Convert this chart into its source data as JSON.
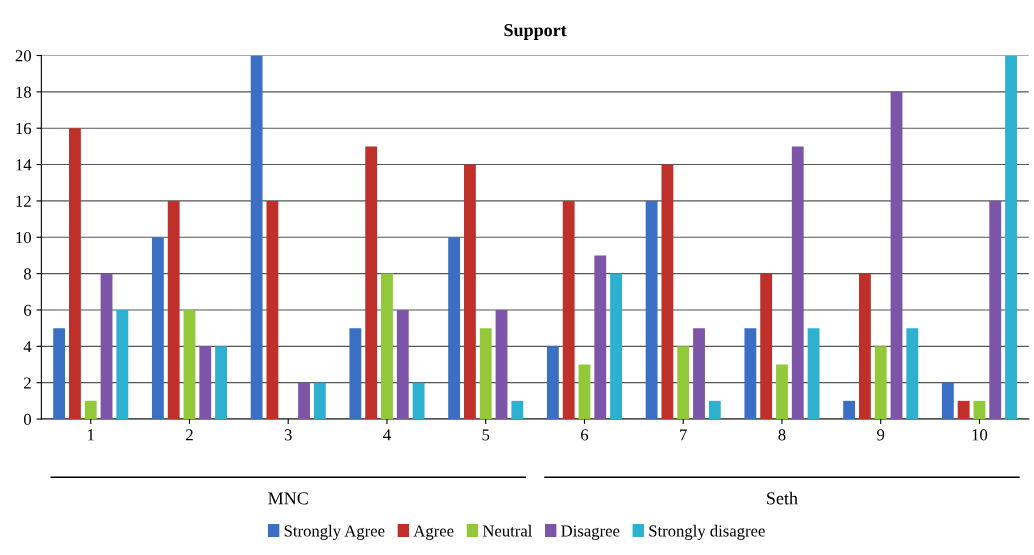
{
  "chart_data": {
    "type": "bar",
    "title": "Support",
    "categories": [
      "1",
      "2",
      "3",
      "4",
      "5",
      "6",
      "7",
      "8",
      "9",
      "10"
    ],
    "series": [
      {
        "name": "Strongly Agree",
        "color": "#3a6fc4",
        "values": [
          5,
          10,
          20,
          5,
          10,
          4,
          12,
          5,
          1,
          2
        ]
      },
      {
        "name": "Agree",
        "color": "#c0302a",
        "values": [
          16,
          12,
          12,
          15,
          14,
          12,
          14,
          8,
          8,
          1
        ]
      },
      {
        "name": "Neutral",
        "color": "#92c83a",
        "values": [
          1,
          6,
          0,
          8,
          5,
          3,
          4,
          3,
          4,
          1
        ]
      },
      {
        "name": "Disagree",
        "color": "#7d55a8",
        "values": [
          8,
          4,
          2,
          6,
          6,
          9,
          5,
          15,
          18,
          12
        ]
      },
      {
        "name": "Strongly disagree",
        "color": "#2eb0d0",
        "values": [
          6,
          4,
          2,
          2,
          1,
          8,
          1,
          5,
          5,
          20
        ]
      }
    ],
    "ylim": [
      0,
      20
    ],
    "yticks": [
      0,
      2,
      4,
      6,
      8,
      10,
      12,
      14,
      16,
      18,
      20
    ],
    "grid": "y",
    "legend": "bottom",
    "annotations": [
      "MNC",
      "Seth"
    ]
  }
}
